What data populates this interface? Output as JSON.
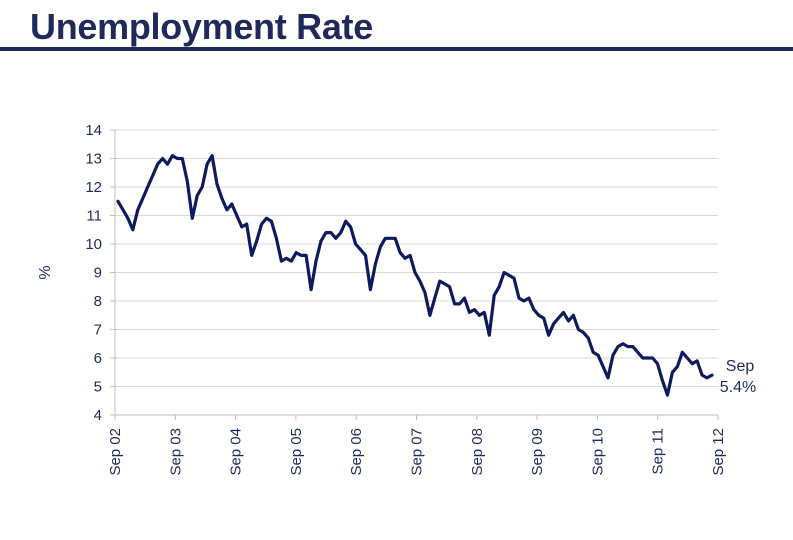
{
  "header": {
    "title": "Unemployment Rate"
  },
  "colors": {
    "series": "#0d1b5e",
    "text": "#1f2a5a",
    "grid": "#d9d9d9",
    "axis": "#bfbfbf"
  },
  "chart_data": {
    "type": "line",
    "title": "Unemployment Rate",
    "xlabel": "",
    "ylabel": "%",
    "ylim": [
      4,
      14
    ],
    "yticks": [
      4,
      5,
      6,
      7,
      8,
      9,
      10,
      11,
      12,
      13,
      14
    ],
    "grid": true,
    "legend": "none",
    "xtick_labels": [
      "Sep 02",
      "Sep 03",
      "Sep 04",
      "Sep 05",
      "Sep 06",
      "Sep 07",
      "Sep 08",
      "Sep 09",
      "Sep 10",
      "Sep 11",
      "Sep 12"
    ],
    "x_start": "Sep 02",
    "x_end": "Sep 12",
    "series": [
      {
        "values": [
          11.5,
          11.2,
          10.9,
          10.5,
          11.2,
          11.6,
          12.0,
          12.4,
          12.8,
          13.0,
          12.8,
          13.1,
          13.0,
          13.0,
          12.2,
          10.9,
          11.7,
          12.0,
          12.8,
          13.1,
          12.1,
          11.6,
          11.2,
          11.4,
          11.0,
          10.6,
          10.7,
          9.6,
          10.1,
          10.7,
          10.9,
          10.8,
          10.2,
          9.4,
          9.5,
          9.4,
          9.7,
          9.6,
          9.6,
          8.4,
          9.4,
          10.1,
          10.4,
          10.4,
          10.2,
          10.4,
          10.8,
          10.6,
          10.0,
          9.8,
          9.6,
          8.4,
          9.3,
          9.9,
          10.2,
          10.2,
          10.2,
          9.7,
          9.5,
          9.6,
          9.0,
          8.7,
          8.3,
          7.5,
          8.1,
          8.7,
          8.6,
          8.5,
          7.9,
          7.9,
          8.1,
          7.6,
          7.7,
          7.5,
          7.6,
          6.8,
          8.2,
          8.5,
          9.0,
          8.9,
          8.8,
          8.1,
          8.0,
          8.1,
          7.7,
          7.5,
          7.4,
          6.8,
          7.2,
          7.4,
          7.6,
          7.3,
          7.5,
          7.0,
          6.9,
          6.7,
          6.2,
          6.1,
          5.7,
          5.3,
          6.1,
          6.4,
          6.5,
          6.4,
          6.4,
          6.2,
          6.0,
          6.0,
          6.0,
          5.8,
          5.2,
          4.7,
          5.5,
          5.7,
          6.2,
          6.0,
          5.8,
          5.9,
          5.4,
          5.3,
          5.4
        ]
      }
    ],
    "annotation": {
      "line1": "Sep",
      "line2": "5.4%",
      "value": 5.4
    }
  }
}
